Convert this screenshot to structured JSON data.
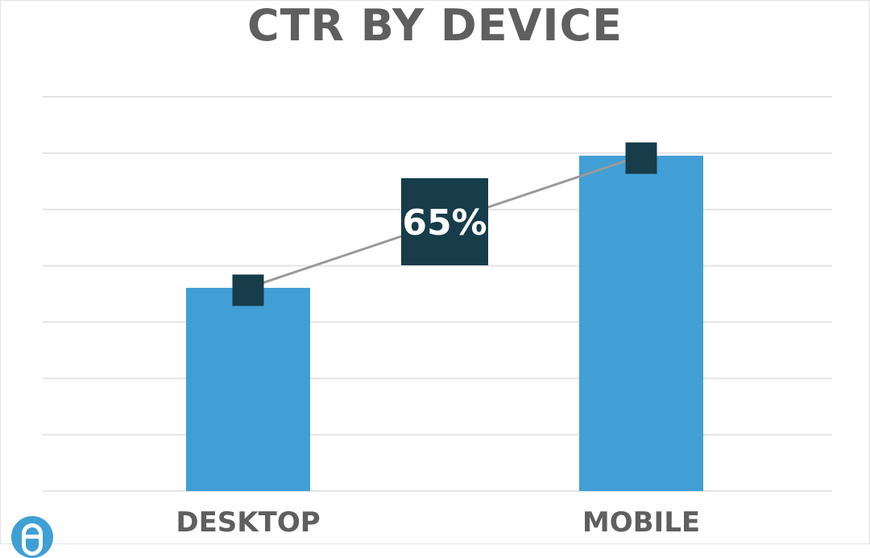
{
  "chart_data": {
    "type": "bar",
    "title": "CTR BY DEVICE",
    "categories": [
      "DESKTOP",
      "MOBILE"
    ],
    "values": [
      100,
      165
    ],
    "ylim": [
      0,
      194
    ],
    "grid": true,
    "legend": "none",
    "annotations": [
      {
        "text": "65%",
        "type": "change-callout",
        "from": "DESKTOP",
        "to": "MOBILE"
      }
    ],
    "colors": {
      "bar": "#419fd5",
      "marker": "#173c4a",
      "connector": "#9a9a9a",
      "grid": "#e4e4e4",
      "text": "#5f5f5f"
    }
  },
  "logo": {
    "icon": "brand-logo-icon"
  }
}
